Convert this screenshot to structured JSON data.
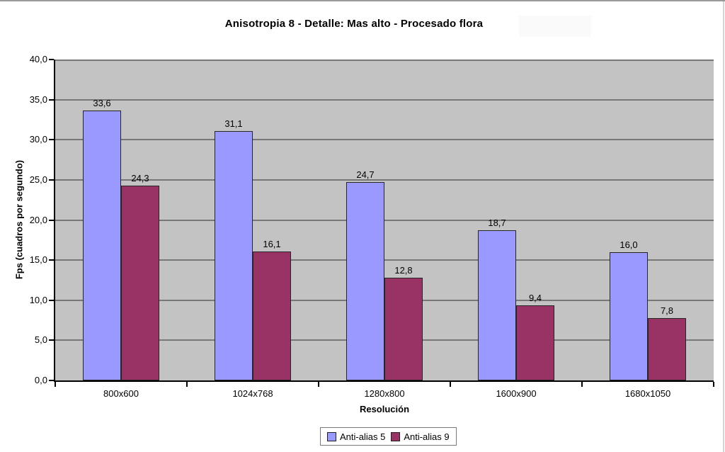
{
  "window": {
    "top_border_color": "#9a9a9a",
    "right_border_color": "#d4d4d4"
  },
  "chart_data": {
    "type": "bar",
    "title": "Anisotropia 8 - Detalle: Mas alto - Procesado flora",
    "xlabel": "Resolución",
    "ylabel": "Fps (cuadros por segundo)",
    "ylim": [
      0,
      40
    ],
    "y_tick_step": 5,
    "y_tick_labels": [
      "0,0",
      "5,0",
      "10,0",
      "15,0",
      "20,0",
      "25,0",
      "30,0",
      "35,0",
      "40,0"
    ],
    "categories": [
      "800x600",
      "1024x768",
      "1280x800",
      "1600x900",
      "1680x1050"
    ],
    "series": [
      {
        "name": "Anti-alias 5",
        "color": "#9999FF",
        "values": [
          33.6,
          31.1,
          24.7,
          18.7,
          16.0
        ],
        "labels": [
          "33,6",
          "31,1",
          "24,7",
          "18,7",
          "16,0"
        ]
      },
      {
        "name": "Anti-alias 9",
        "color": "#993366",
        "values": [
          24.3,
          16.1,
          12.8,
          9.4,
          7.8
        ],
        "labels": [
          "24,3",
          "16,1",
          "12,8",
          "9,4",
          "7,8"
        ]
      }
    ],
    "grid": true,
    "gridline_color": "#777777",
    "plot_bg_color": "#c3c3c3",
    "axis_color": "#000000",
    "legend_position": "bottom-center"
  }
}
